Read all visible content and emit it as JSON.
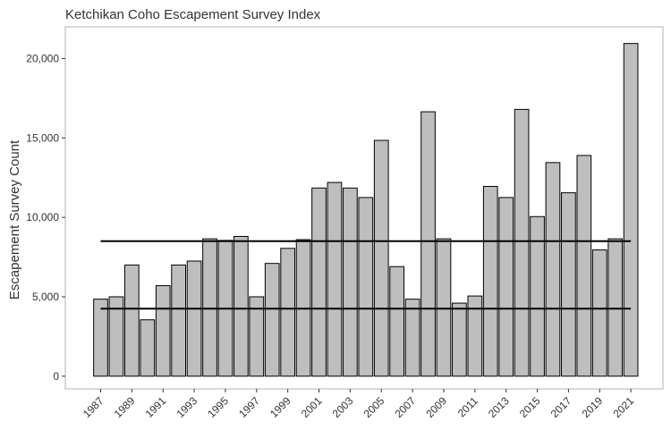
{
  "chart_data": {
    "type": "bar",
    "title": "Ketchikan Coho Escapement Survey Index",
    "xlabel": "",
    "ylabel": "Escapement Survey Count",
    "x": [
      1987,
      1988,
      1989,
      1990,
      1991,
      1992,
      1993,
      1994,
      1995,
      1996,
      1997,
      1998,
      1999,
      2000,
      2001,
      2002,
      2003,
      2004,
      2005,
      2006,
      2007,
      2008,
      2009,
      2010,
      2011,
      2012,
      2013,
      2014,
      2015,
      2016,
      2017,
      2018,
      2019,
      2020,
      2021
    ],
    "values": [
      4850,
      5000,
      7000,
      3550,
      5700,
      7000,
      7250,
      8650,
      8550,
      8800,
      5000,
      7100,
      8050,
      8600,
      11850,
      12200,
      11850,
      11250,
      14850,
      6900,
      4850,
      16650,
      8650,
      4600,
      5050,
      11950,
      11250,
      16800,
      10050,
      13450,
      11550,
      13900,
      7950,
      8650,
      20950
    ],
    "x_tick_labels": [
      "1987",
      "1989",
      "1991",
      "1993",
      "1995",
      "1997",
      "1999",
      "2001",
      "2003",
      "2005",
      "2007",
      "2009",
      "2011",
      "2013",
      "2015",
      "2017",
      "2019",
      "2021"
    ],
    "y_ticks": [
      0,
      5000,
      10000,
      15000,
      20000
    ],
    "y_tick_labels": [
      "0",
      "5,000",
      "10,000",
      "15,000",
      "20,000"
    ],
    "ylim": [
      -800,
      22000
    ],
    "reference_lines": [
      {
        "y": 8500,
        "x_start": 1987,
        "x_end": 2021
      },
      {
        "y": 4250,
        "x_start": 1987,
        "x_end": 2021
      }
    ],
    "grid": false,
    "colors": {
      "bar_fill": "#bebebe",
      "bar_stroke": "#000000",
      "line": "#000000",
      "panel_border": "#b3b3b3"
    }
  }
}
